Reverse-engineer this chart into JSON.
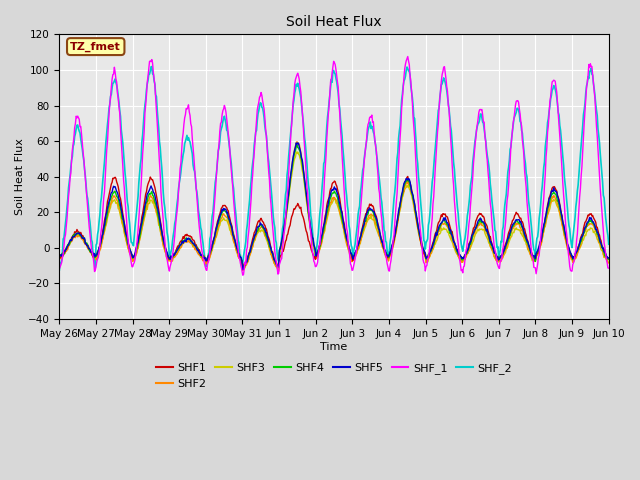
{
  "title": "Soil Heat Flux",
  "xlabel": "Time",
  "ylabel": "Soil Heat Flux",
  "ylim": [
    -40,
    120
  ],
  "yticks": [
    -40,
    -20,
    0,
    20,
    40,
    60,
    80,
    100,
    120
  ],
  "n_days": 15,
  "pts_per_day": 48,
  "xtick_labels": [
    "May 26",
    "May 27",
    "May 28",
    "May 29",
    "May 30",
    "May 31",
    "Jun 1",
    "Jun 2",
    "Jun 3",
    "Jun 4",
    "Jun 5",
    "Jun 6",
    "Jun 7",
    "Jun 8",
    "Jun 9",
    "Jun 10"
  ],
  "series": {
    "SHF1": {
      "color": "#cc0000",
      "lw": 1.0
    },
    "SHF2": {
      "color": "#ff8800",
      "lw": 1.0
    },
    "SHF3": {
      "color": "#cccc00",
      "lw": 1.0
    },
    "SHF4": {
      "color": "#00cc00",
      "lw": 1.0
    },
    "SHF5": {
      "color": "#0000cc",
      "lw": 1.0
    },
    "SHF_1": {
      "color": "#ff00ff",
      "lw": 1.0
    },
    "SHF_2": {
      "color": "#00cccc",
      "lw": 1.2
    }
  },
  "plot_order": [
    "SHF_2",
    "SHF3",
    "SHF2",
    "SHF1",
    "SHF4",
    "SHF5",
    "SHF_1"
  ],
  "legend_order": [
    "SHF1",
    "SHF2",
    "SHF3",
    "SHF4",
    "SHF5",
    "SHF_1",
    "SHF_2"
  ],
  "legend_label": "TZ_fmet",
  "fig_facecolor": "#d8d8d8",
  "plot_facecolor": "#e8e8e8",
  "grid_color": "#ffffff"
}
